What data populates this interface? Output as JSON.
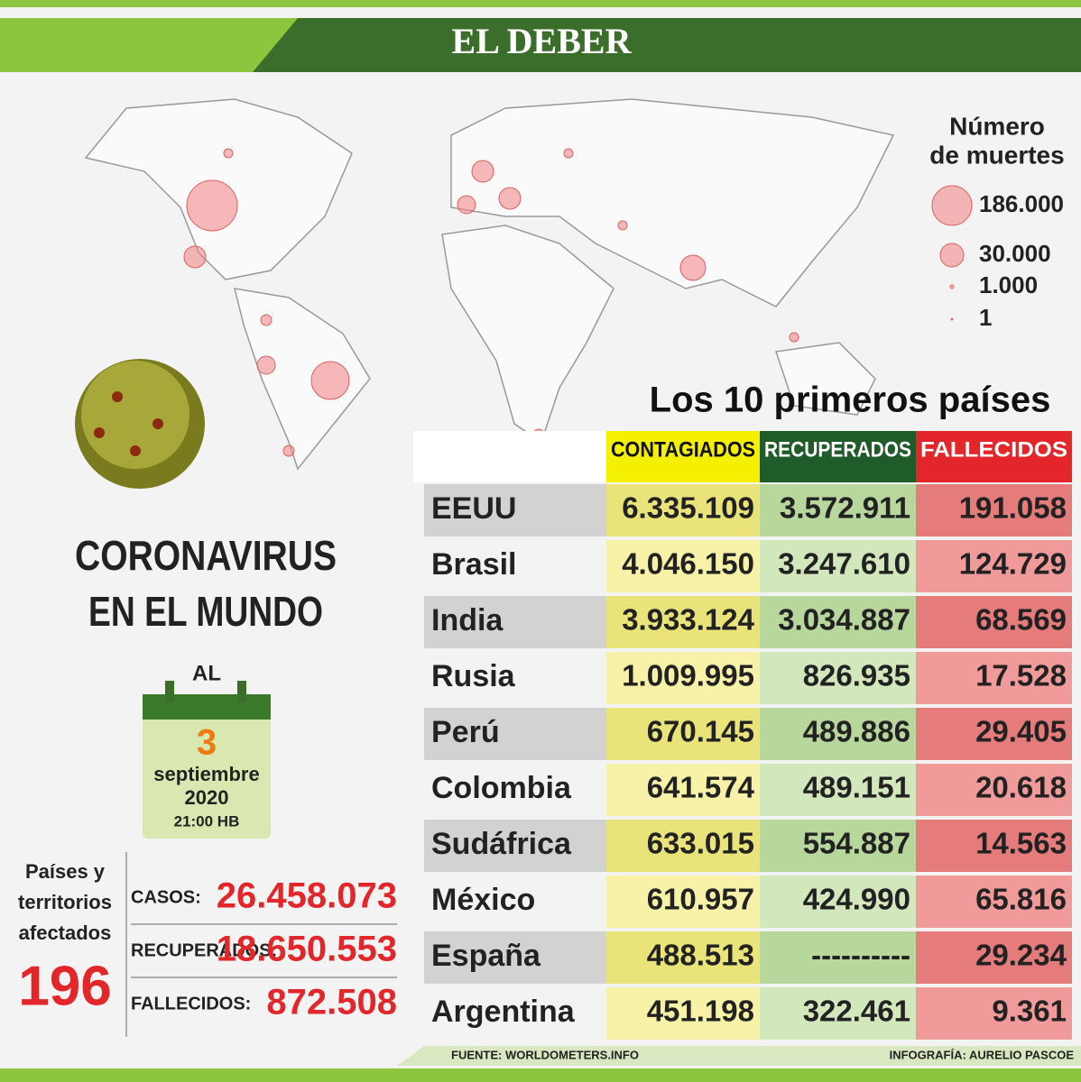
{
  "header": {
    "title": "EL DEBER"
  },
  "legend": {
    "title": [
      "Número",
      "de muertes"
    ],
    "items": [
      "186.000",
      "30.000",
      "1.000",
      "1"
    ]
  },
  "headline": [
    "CORONAVIRUS",
    "EN EL MUNDO"
  ],
  "date": {
    "prefix": "AL",
    "day": "3",
    "month": "septiembre",
    "year": "2020",
    "time": "21:00 HB"
  },
  "summary": {
    "affected_label": [
      "Países y",
      "territorios",
      "afectados"
    ],
    "affected_value": "196",
    "rows": [
      {
        "label": "CASOS:",
        "value": "26.458.073"
      },
      {
        "label": "RECUPERADOS:",
        "value": "18.650.553"
      },
      {
        "label": "FALLECIDOS:",
        "value": "872.508"
      }
    ]
  },
  "table": {
    "title": "Los 10 primeros países",
    "columns": [
      "CONTAGIADOS",
      "RECUPERADOS",
      "FALLECIDOS"
    ],
    "rows": [
      [
        "EEUU",
        "6.335.109",
        "3.572.911",
        "191.058"
      ],
      [
        "Brasil",
        "4.046.150",
        "3.247.610",
        "124.729"
      ],
      [
        "India",
        "3.933.124",
        "3.034.887",
        "68.569"
      ],
      [
        "Rusia",
        "1.009.995",
        "826.935",
        "17.528"
      ],
      [
        "Perú",
        "670.145",
        "489.886",
        "29.405"
      ],
      [
        "Colombia",
        "641.574",
        "489.151",
        "20.618"
      ],
      [
        "Sudáfrica",
        "633.015",
        "554.887",
        "14.563"
      ],
      [
        "México",
        "610.957",
        "424.990",
        "65.816"
      ],
      [
        "España",
        "488.513",
        "----------",
        "29.234"
      ],
      [
        "Argentina",
        "451.198",
        "322.461",
        "9.361"
      ]
    ]
  },
  "footer": {
    "source": "FUENTE: WORLDOMETERS.INFO",
    "credit": "INFOGRAFÍA:  AURELIO PASCOE"
  }
}
